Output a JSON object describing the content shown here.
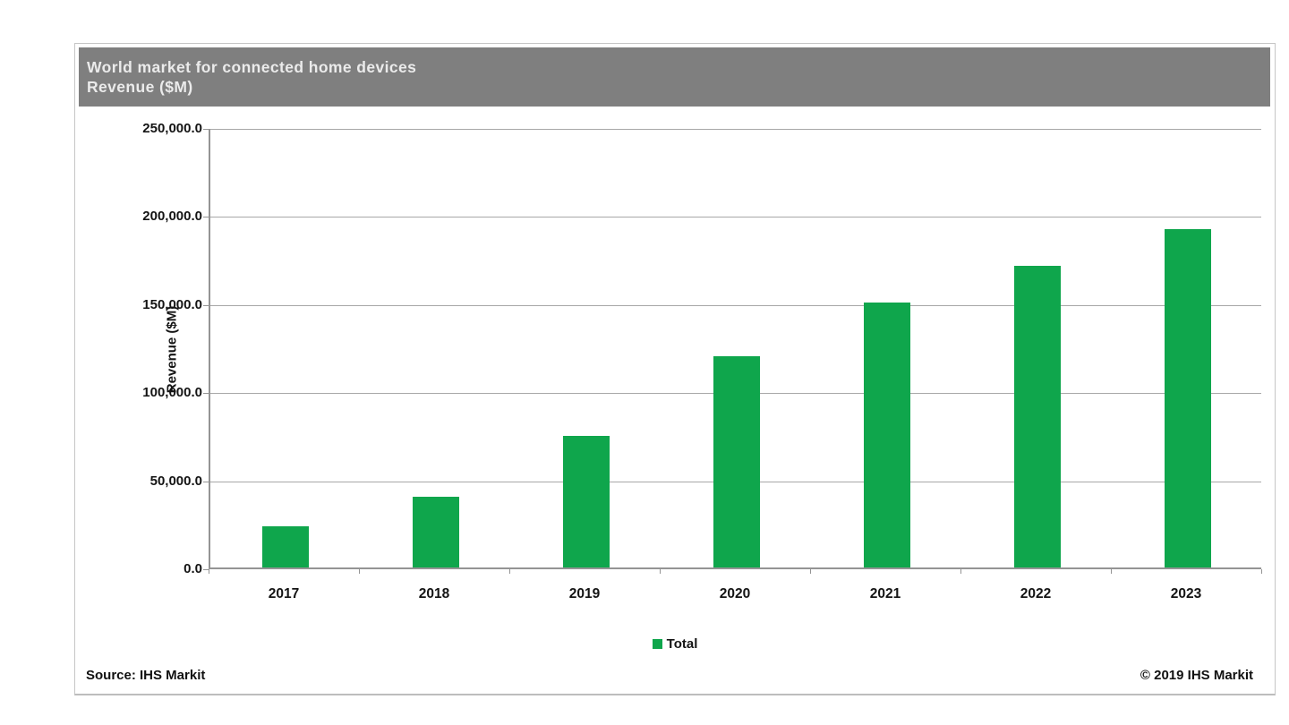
{
  "panel": {
    "title_line1": "World market for connected home devices",
    "title_line2": "Revenue ($M)",
    "titlebar_bg": "#7f7f7f",
    "source_label": "Source: IHS Markit",
    "copyright_label": "© 2019 IHS Markit"
  },
  "chart_data": {
    "type": "bar",
    "title": "World market for connected home devices",
    "subtitle": "Revenue ($M)",
    "categories": [
      "2017",
      "2018",
      "2019",
      "2020",
      "2021",
      "2022",
      "2023"
    ],
    "series": [
      {
        "name": "Total",
        "values": [
          23500,
          40000,
          74500,
          120000,
          150500,
          171500,
          192000
        ]
      }
    ],
    "xlabel": "",
    "ylabel": "Revenue ($M)",
    "ylim": [
      0,
      250000
    ],
    "ytick_interval": 50000,
    "ytick_labels": [
      "0.0",
      "50,000.0",
      "100,000.0",
      "150,000.0",
      "200,000.0",
      "250,000.0"
    ],
    "grid": true,
    "legend_position": "bottom",
    "bar_color": "#0fa64c",
    "gridline_color": "#a8a8a8",
    "axis_color": "#949494"
  }
}
